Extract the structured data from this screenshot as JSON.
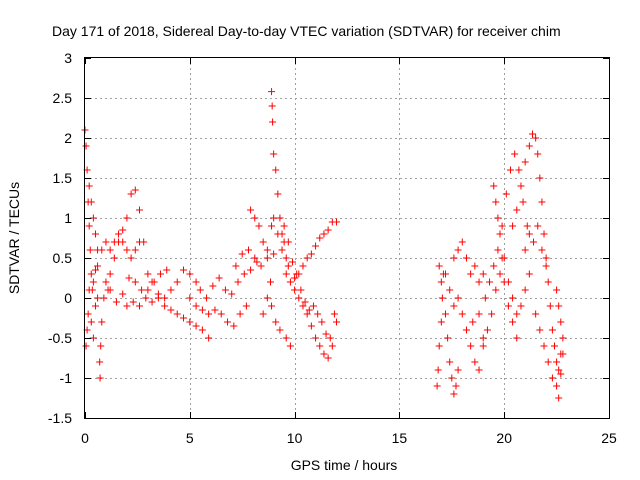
{
  "chart_data": {
    "type": "scatter",
    "title": "Day 171 of 2018, Sidereal Day-to-day VTEC variation (SDTVAR) for receiver chim",
    "xlabel": "GPS time / hours",
    "ylabel": "SDTVAR / TECUs",
    "xlim": [
      0,
      25
    ],
    "ylim": [
      -1.5,
      3
    ],
    "x_ticks": [
      "0",
      "5",
      "10",
      "15",
      "20",
      "25"
    ],
    "x_tick_values": [
      0,
      5,
      10,
      15,
      20,
      25
    ],
    "y_ticks": [
      "-1.5",
      "-1",
      "-0.5",
      "0",
      "0.5",
      "1",
      "1.5",
      "2",
      "2.5",
      "3"
    ],
    "y_tick_values": [
      -1.5,
      -1,
      -0.5,
      0,
      0.5,
      1,
      1.5,
      2,
      2.5,
      3
    ],
    "grid": true,
    "marker": "+",
    "color": "#ff0000",
    "series": [
      {
        "name": "SDTVAR",
        "points": [
          [
            0.0,
            2.1
          ],
          [
            0.05,
            1.9
          ],
          [
            0.1,
            1.6
          ],
          [
            0.15,
            1.2
          ],
          [
            0.2,
            0.9
          ],
          [
            0.25,
            0.6
          ],
          [
            0.3,
            0.3
          ],
          [
            0.35,
            0.1
          ],
          [
            0.4,
            0.2
          ],
          [
            0.5,
            0.35
          ],
          [
            0.6,
            0.4
          ],
          [
            0.05,
            -0.6
          ],
          [
            0.1,
            -0.4
          ],
          [
            0.15,
            -0.2
          ],
          [
            0.2,
            0.1
          ],
          [
            0.3,
            -0.3
          ],
          [
            0.4,
            -0.5
          ],
          [
            0.5,
            -0.1
          ],
          [
            0.6,
            0.0
          ],
          [
            0.2,
            1.4
          ],
          [
            0.3,
            1.2
          ],
          [
            0.4,
            1.0
          ],
          [
            0.5,
            0.8
          ],
          [
            0.6,
            0.6
          ],
          [
            0.7,
            -0.8
          ],
          [
            0.72,
            -1.0
          ],
          [
            0.75,
            -0.6
          ],
          [
            0.8,
            -0.3
          ],
          [
            0.9,
            0.0
          ],
          [
            1.0,
            0.2
          ],
          [
            1.1,
            0.1
          ],
          [
            1.2,
            0.3
          ],
          [
            1.4,
            0.5
          ],
          [
            1.6,
            0.7
          ],
          [
            1.8,
            0.85
          ],
          [
            2.0,
            1.0
          ],
          [
            2.2,
            1.3
          ],
          [
            2.4,
            1.35
          ],
          [
            2.6,
            1.1
          ],
          [
            2.8,
            0.7
          ],
          [
            3.0,
            0.3
          ],
          [
            3.2,
            0.2
          ],
          [
            0.8,
            0.6
          ],
          [
            1.0,
            0.7
          ],
          [
            1.2,
            0.6
          ],
          [
            1.4,
            0.7
          ],
          [
            1.6,
            0.8
          ],
          [
            1.8,
            0.7
          ],
          [
            2.0,
            0.6
          ],
          [
            2.2,
            0.5
          ],
          [
            2.4,
            0.6
          ],
          [
            2.6,
            0.7
          ],
          [
            1.2,
            0.1
          ],
          [
            1.5,
            -0.05
          ],
          [
            1.8,
            0.05
          ],
          [
            2.1,
            0.25
          ],
          [
            2.4,
            0.2
          ],
          [
            2.7,
            0.1
          ],
          [
            3.0,
            0.1
          ],
          [
            3.3,
            0.2
          ],
          [
            3.6,
            0.3
          ],
          [
            3.9,
            0.35
          ],
          [
            2.0,
            -0.1
          ],
          [
            2.3,
            -0.05
          ],
          [
            2.6,
            -0.1
          ],
          [
            2.9,
            0.0
          ],
          [
            3.2,
            -0.05
          ],
          [
            3.5,
            0.05
          ],
          [
            3.8,
            0.0
          ],
          [
            4.1,
            0.1
          ],
          [
            4.4,
            0.2
          ],
          [
            4.7,
            0.35
          ],
          [
            5.0,
            0.3
          ],
          [
            5.3,
            0.2
          ],
          [
            3.5,
            0.0
          ],
          [
            3.8,
            -0.1
          ],
          [
            4.1,
            -0.15
          ],
          [
            4.4,
            -0.2
          ],
          [
            4.7,
            -0.25
          ],
          [
            5.0,
            -0.3
          ],
          [
            5.3,
            -0.35
          ],
          [
            5.6,
            -0.4
          ],
          [
            5.9,
            -0.5
          ],
          [
            5.0,
            0.0
          ],
          [
            5.3,
            -0.1
          ],
          [
            5.6,
            -0.15
          ],
          [
            5.9,
            -0.2
          ],
          [
            6.2,
            -0.15
          ],
          [
            6.5,
            -0.2
          ],
          [
            6.8,
            -0.3
          ],
          [
            7.1,
            -0.35
          ],
          [
            7.4,
            -0.2
          ],
          [
            7.7,
            -0.1
          ],
          [
            5.5,
            0.1
          ],
          [
            5.8,
            0.0
          ],
          [
            6.1,
            0.15
          ],
          [
            6.4,
            0.25
          ],
          [
            6.7,
            0.1
          ],
          [
            7.0,
            0.05
          ],
          [
            7.3,
            0.2
          ],
          [
            7.6,
            0.3
          ],
          [
            7.9,
            0.35
          ],
          [
            8.2,
            0.45
          ],
          [
            7.2,
            0.4
          ],
          [
            7.5,
            0.55
          ],
          [
            7.8,
            0.6
          ],
          [
            8.1,
            0.5
          ],
          [
            8.4,
            0.4
          ],
          [
            8.7,
            0.6
          ],
          [
            9.0,
            0.55
          ],
          [
            7.9,
            1.1
          ],
          [
            8.1,
            1.0
          ],
          [
            8.3,
            0.9
          ],
          [
            8.5,
            0.7
          ],
          [
            8.7,
            0.5
          ],
          [
            8.85,
            0.2
          ],
          [
            8.9,
            2.58
          ],
          [
            8.93,
            2.4
          ],
          [
            8.95,
            2.2
          ],
          [
            9.0,
            1.8
          ],
          [
            9.1,
            1.6
          ],
          [
            9.2,
            1.3
          ],
          [
            9.3,
            1.0
          ],
          [
            9.4,
            0.8
          ],
          [
            9.5,
            0.7
          ],
          [
            9.6,
            0.5
          ],
          [
            9.7,
            0.4
          ],
          [
            8.9,
            0.9
          ],
          [
            9.0,
            1.0
          ],
          [
            9.2,
            0.8
          ],
          [
            9.4,
            0.6
          ],
          [
            9.6,
            0.3
          ],
          [
            9.8,
            0.2
          ],
          [
            10.0,
            0.1
          ],
          [
            10.2,
            0.0
          ],
          [
            10.4,
            -0.1
          ],
          [
            10.6,
            -0.2
          ],
          [
            10.8,
            -0.35
          ],
          [
            11.0,
            -0.5
          ],
          [
            11.2,
            -0.6
          ],
          [
            11.4,
            -0.7
          ],
          [
            11.6,
            -0.75
          ],
          [
            11.8,
            -0.6
          ],
          [
            12.0,
            -0.3
          ],
          [
            9.5,
            0.9
          ],
          [
            9.7,
            0.7
          ],
          [
            9.9,
            0.45
          ],
          [
            10.1,
            0.3
          ],
          [
            10.3,
            0.1
          ],
          [
            10.5,
            -0.05
          ],
          [
            10.7,
            -0.15
          ],
          [
            10.9,
            -0.1
          ],
          [
            11.1,
            -0.2
          ],
          [
            11.3,
            -0.3
          ],
          [
            11.5,
            -0.45
          ],
          [
            11.7,
            -0.5
          ],
          [
            11.9,
            -0.2
          ],
          [
            10.0,
            0.25
          ],
          [
            10.2,
            0.3
          ],
          [
            10.4,
            0.4
          ],
          [
            10.6,
            0.5
          ],
          [
            10.8,
            0.55
          ],
          [
            11.0,
            0.65
          ],
          [
            11.2,
            0.75
          ],
          [
            11.4,
            0.8
          ],
          [
            11.6,
            0.85
          ],
          [
            11.8,
            0.95
          ],
          [
            12.0,
            0.95
          ],
          [
            8.5,
            -0.2
          ],
          [
            8.7,
            0.0
          ],
          [
            8.9,
            -0.1
          ],
          [
            9.1,
            -0.3
          ],
          [
            9.3,
            -0.4
          ],
          [
            9.6,
            -0.5
          ],
          [
            9.8,
            -0.6
          ],
          [
            16.8,
            -1.1
          ],
          [
            16.85,
            -0.9
          ],
          [
            16.9,
            -0.6
          ],
          [
            17.0,
            -0.3
          ],
          [
            17.05,
            0.0
          ],
          [
            17.1,
            0.3
          ],
          [
            17.2,
            -0.2
          ],
          [
            17.3,
            -0.5
          ],
          [
            17.4,
            -0.8
          ],
          [
            17.5,
            -1.0
          ],
          [
            17.6,
            -1.2
          ],
          [
            17.7,
            -1.1
          ],
          [
            17.8,
            -0.9
          ],
          [
            16.9,
            0.4
          ],
          [
            17.0,
            0.2
          ],
          [
            17.2,
            0.3
          ],
          [
            17.4,
            0.1
          ],
          [
            17.6,
            -0.1
          ],
          [
            17.8,
            0.0
          ],
          [
            18.0,
            -0.2
          ],
          [
            18.2,
            -0.4
          ],
          [
            18.4,
            -0.6
          ],
          [
            18.6,
            -0.8
          ],
          [
            18.8,
            -0.9
          ],
          [
            19.0,
            -0.5
          ],
          [
            17.6,
            0.5
          ],
          [
            17.8,
            0.6
          ],
          [
            18.0,
            0.7
          ],
          [
            18.2,
            0.5
          ],
          [
            18.4,
            0.3
          ],
          [
            18.6,
            0.4
          ],
          [
            18.8,
            0.2
          ],
          [
            19.0,
            0.3
          ],
          [
            18.5,
            -0.3
          ],
          [
            18.8,
            -0.2
          ],
          [
            19.1,
            0.0
          ],
          [
            19.3,
            0.2
          ],
          [
            19.5,
            0.4
          ],
          [
            19.7,
            0.6
          ],
          [
            19.9,
            0.9
          ],
          [
            20.1,
            1.3
          ],
          [
            20.3,
            1.6
          ],
          [
            20.5,
            1.8
          ],
          [
            20.7,
            1.6
          ],
          [
            20.9,
            1.2
          ],
          [
            21.1,
            0.9
          ],
          [
            19.0,
            -0.6
          ],
          [
            19.2,
            -0.4
          ],
          [
            19.4,
            -0.2
          ],
          [
            19.6,
            0.1
          ],
          [
            19.8,
            0.3
          ],
          [
            20.0,
            0.5
          ],
          [
            20.2,
            0.2
          ],
          [
            20.4,
            0.0
          ],
          [
            20.6,
            -0.2
          ],
          [
            20.8,
            -0.1
          ],
          [
            21.0,
            0.1
          ],
          [
            21.2,
            0.3
          ],
          [
            19.5,
            1.4
          ],
          [
            19.6,
            1.2
          ],
          [
            19.7,
            1.0
          ],
          [
            19.8,
            0.8
          ],
          [
            19.9,
            0.5
          ],
          [
            20.0,
            0.2
          ],
          [
            20.2,
            -0.1
          ],
          [
            20.4,
            -0.3
          ],
          [
            20.6,
            -0.5
          ],
          [
            20.4,
            0.9
          ],
          [
            20.6,
            1.1
          ],
          [
            20.8,
            1.4
          ],
          [
            21.0,
            1.7
          ],
          [
            21.2,
            1.9
          ],
          [
            21.35,
            2.05
          ],
          [
            21.5,
            2.0
          ],
          [
            21.6,
            1.8
          ],
          [
            21.7,
            1.5
          ],
          [
            21.8,
            1.2
          ],
          [
            21.9,
            0.8
          ],
          [
            22.0,
            0.5
          ],
          [
            21.0,
            0.6
          ],
          [
            21.2,
            0.8
          ],
          [
            21.4,
            0.7
          ],
          [
            21.6,
            0.9
          ],
          [
            21.8,
            0.6
          ],
          [
            22.0,
            0.4
          ],
          [
            22.1,
            0.2
          ],
          [
            22.2,
            -0.1
          ],
          [
            22.3,
            -0.4
          ],
          [
            22.4,
            -0.6
          ],
          [
            22.5,
            -0.8
          ],
          [
            22.6,
            -0.9
          ],
          [
            22.7,
            -0.7
          ],
          [
            21.5,
            -0.2
          ],
          [
            21.7,
            -0.4
          ],
          [
            21.9,
            -0.6
          ],
          [
            22.1,
            -0.8
          ],
          [
            22.3,
            -1.0
          ],
          [
            22.5,
            -1.1
          ],
          [
            22.6,
            -1.25
          ],
          [
            22.7,
            -0.95
          ],
          [
            22.8,
            -0.7
          ],
          [
            22.5,
            0.1
          ],
          [
            22.6,
            -0.1
          ],
          [
            22.7,
            -0.3
          ],
          [
            22.8,
            -0.5
          ]
        ]
      }
    ]
  }
}
